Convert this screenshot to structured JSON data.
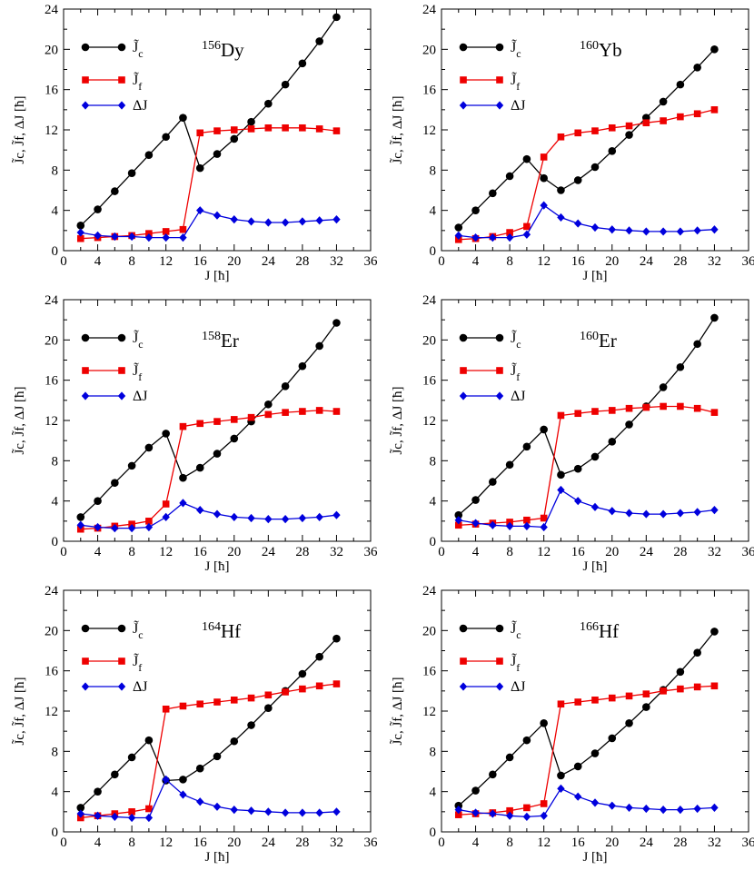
{
  "colors": {
    "jc": "#000000",
    "jf": "#ee0000",
    "dj": "#0000dd"
  },
  "axes": {
    "xlabel": "J [ħ]",
    "ylabel": "J̃c, J̃f, ΔJ [ħ]",
    "xticks": [
      "0",
      "4",
      "8",
      "12",
      "16",
      "20",
      "24",
      "28",
      "32",
      "36"
    ],
    "yticks": [
      "0",
      "4",
      "8",
      "12",
      "16",
      "20",
      "24"
    ]
  },
  "legend": {
    "jc": "J̃",
    "jc_sub": "c",
    "jf": "J̃",
    "jf_sub": "f",
    "dj": "ΔJ"
  },
  "chart_data": [
    {
      "type": "line",
      "nucleus_mass": "156",
      "nucleus_symbol": "Dy",
      "xlim": [
        0,
        36
      ],
      "ylim": [
        0,
        24
      ],
      "x": [
        2,
        4,
        6,
        8,
        10,
        12,
        14,
        16,
        18,
        20,
        22,
        24,
        26,
        28,
        30,
        32
      ],
      "series": [
        {
          "name": "J̃c",
          "key": "jc",
          "marker": "circle",
          "values": [
            2.5,
            4.1,
            5.9,
            7.7,
            9.5,
            11.3,
            13.2,
            8.2,
            9.6,
            11.1,
            12.8,
            14.6,
            16.5,
            18.6,
            20.8,
            23.2
          ]
        },
        {
          "name": "J̃f",
          "key": "jf",
          "marker": "square",
          "values": [
            1.2,
            1.3,
            1.4,
            1.5,
            1.7,
            1.9,
            2.1,
            11.7,
            11.9,
            12.0,
            12.1,
            12.2,
            12.2,
            12.2,
            12.1,
            11.9
          ]
        },
        {
          "name": "ΔJ",
          "key": "dj",
          "marker": "diamond",
          "values": [
            1.8,
            1.5,
            1.4,
            1.4,
            1.3,
            1.3,
            1.3,
            4.0,
            3.5,
            3.1,
            2.9,
            2.8,
            2.8,
            2.9,
            3.0,
            3.1
          ]
        }
      ]
    },
    {
      "type": "line",
      "nucleus_mass": "160",
      "nucleus_symbol": "Yb",
      "xlim": [
        0,
        36
      ],
      "ylim": [
        0,
        24
      ],
      "x": [
        2,
        4,
        6,
        8,
        10,
        12,
        14,
        16,
        18,
        20,
        22,
        24,
        26,
        28,
        30,
        32
      ],
      "series": [
        {
          "name": "J̃c",
          "key": "jc",
          "marker": "circle",
          "values": [
            2.3,
            4.0,
            5.7,
            7.4,
            9.1,
            7.2,
            6.0,
            7.0,
            8.3,
            9.9,
            11.5,
            13.2,
            14.8,
            16.5,
            18.2,
            20.0
          ]
        },
        {
          "name": "J̃f",
          "key": "jf",
          "marker": "square",
          "values": [
            1.1,
            1.2,
            1.4,
            1.8,
            2.4,
            9.3,
            11.3,
            11.7,
            11.9,
            12.2,
            12.4,
            12.7,
            12.9,
            13.3,
            13.6,
            14.0
          ]
        },
        {
          "name": "ΔJ",
          "key": "dj",
          "marker": "diamond",
          "values": [
            1.5,
            1.3,
            1.3,
            1.3,
            1.6,
            4.5,
            3.3,
            2.7,
            2.3,
            2.1,
            2.0,
            1.9,
            1.9,
            1.9,
            2.0,
            2.1
          ]
        }
      ]
    },
    {
      "type": "line",
      "nucleus_mass": "158",
      "nucleus_symbol": "Er",
      "xlim": [
        0,
        36
      ],
      "ylim": [
        0,
        24
      ],
      "x": [
        2,
        4,
        6,
        8,
        10,
        12,
        14,
        16,
        18,
        20,
        22,
        24,
        26,
        28,
        30,
        32
      ],
      "series": [
        {
          "name": "J̃c",
          "key": "jc",
          "marker": "circle",
          "values": [
            2.4,
            4.0,
            5.8,
            7.5,
            9.3,
            10.7,
            6.3,
            7.3,
            8.7,
            10.2,
            11.9,
            13.6,
            15.4,
            17.4,
            19.4,
            21.7
          ]
        },
        {
          "name": "J̃f",
          "key": "jf",
          "marker": "square",
          "values": [
            1.2,
            1.3,
            1.5,
            1.7,
            2.0,
            3.7,
            11.4,
            11.7,
            11.9,
            12.1,
            12.3,
            12.6,
            12.8,
            12.9,
            13.0,
            12.9
          ]
        },
        {
          "name": "ΔJ",
          "key": "dj",
          "marker": "diamond",
          "values": [
            1.6,
            1.4,
            1.3,
            1.3,
            1.4,
            2.4,
            3.8,
            3.1,
            2.7,
            2.4,
            2.3,
            2.2,
            2.2,
            2.3,
            2.4,
            2.6
          ]
        }
      ]
    },
    {
      "type": "line",
      "nucleus_mass": "160",
      "nucleus_symbol": "Er",
      "xlim": [
        0,
        36
      ],
      "ylim": [
        0,
        24
      ],
      "x": [
        2,
        4,
        6,
        8,
        10,
        12,
        14,
        16,
        18,
        20,
        22,
        24,
        26,
        28,
        30,
        32
      ],
      "series": [
        {
          "name": "J̃c",
          "key": "jc",
          "marker": "circle",
          "values": [
            2.6,
            4.1,
            5.9,
            7.6,
            9.4,
            11.1,
            6.6,
            7.2,
            8.4,
            9.9,
            11.6,
            13.4,
            15.3,
            17.3,
            19.6,
            22.2
          ]
        },
        {
          "name": "J̃f",
          "key": "jf",
          "marker": "square",
          "values": [
            1.6,
            1.7,
            1.8,
            1.9,
            2.1,
            2.3,
            12.5,
            12.7,
            12.9,
            13.0,
            13.2,
            13.3,
            13.4,
            13.4,
            13.2,
            12.8
          ]
        },
        {
          "name": "ΔJ",
          "key": "dj",
          "marker": "diamond",
          "values": [
            2.1,
            1.8,
            1.6,
            1.5,
            1.5,
            1.4,
            5.1,
            4.0,
            3.4,
            3.0,
            2.8,
            2.7,
            2.7,
            2.8,
            2.9,
            3.1
          ]
        }
      ]
    },
    {
      "type": "line",
      "nucleus_mass": "164",
      "nucleus_symbol": "Hf",
      "xlim": [
        0,
        36
      ],
      "ylim": [
        0,
        24
      ],
      "x": [
        2,
        4,
        6,
        8,
        10,
        12,
        14,
        16,
        18,
        20,
        22,
        24,
        26,
        28,
        30,
        32
      ],
      "series": [
        {
          "name": "J̃c",
          "key": "jc",
          "marker": "circle",
          "values": [
            2.4,
            4.0,
            5.7,
            7.4,
            9.1,
            5.1,
            5.2,
            6.3,
            7.5,
            9.0,
            10.6,
            12.3,
            14.0,
            15.7,
            17.4,
            19.2
          ]
        },
        {
          "name": "J̃f",
          "key": "jf",
          "marker": "square",
          "values": [
            1.4,
            1.6,
            1.8,
            2.0,
            2.3,
            12.2,
            12.5,
            12.7,
            12.9,
            13.1,
            13.3,
            13.6,
            13.9,
            14.2,
            14.5,
            14.7
          ]
        },
        {
          "name": "ΔJ",
          "key": "dj",
          "marker": "diamond",
          "values": [
            1.8,
            1.6,
            1.5,
            1.4,
            1.4,
            5.2,
            3.7,
            3.0,
            2.5,
            2.2,
            2.1,
            2.0,
            1.9,
            1.9,
            1.9,
            2.0
          ]
        }
      ]
    },
    {
      "type": "line",
      "nucleus_mass": "166",
      "nucleus_symbol": "Hf",
      "xlim": [
        0,
        36
      ],
      "ylim": [
        0,
        24
      ],
      "x": [
        2,
        4,
        6,
        8,
        10,
        12,
        14,
        16,
        18,
        20,
        22,
        24,
        26,
        28,
        30,
        32
      ],
      "series": [
        {
          "name": "J̃c",
          "key": "jc",
          "marker": "circle",
          "values": [
            2.6,
            4.1,
            5.7,
            7.4,
            9.1,
            10.8,
            5.6,
            6.5,
            7.8,
            9.3,
            10.8,
            12.4,
            14.1,
            15.9,
            17.8,
            19.9
          ]
        },
        {
          "name": "J̃f",
          "key": "jf",
          "marker": "square",
          "values": [
            1.7,
            1.8,
            1.9,
            2.1,
            2.4,
            2.8,
            12.7,
            12.9,
            13.1,
            13.3,
            13.5,
            13.7,
            14.0,
            14.2,
            14.4,
            14.5
          ]
        },
        {
          "name": "ΔJ",
          "key": "dj",
          "marker": "diamond",
          "values": [
            2.2,
            1.9,
            1.8,
            1.6,
            1.5,
            1.6,
            4.3,
            3.5,
            2.9,
            2.6,
            2.4,
            2.3,
            2.2,
            2.2,
            2.3,
            2.4
          ]
        }
      ]
    }
  ]
}
